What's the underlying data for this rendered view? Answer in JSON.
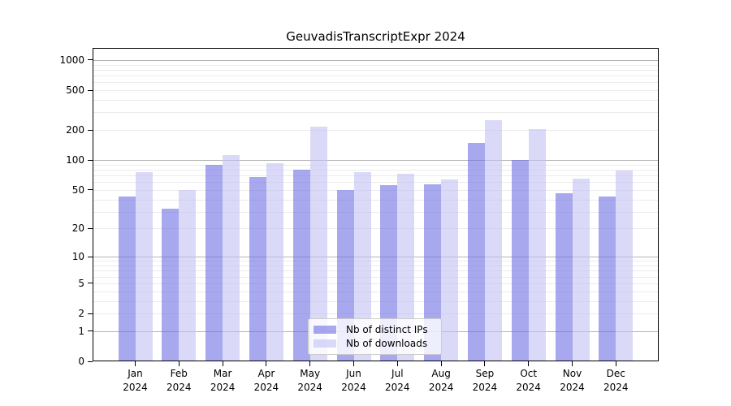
{
  "title": "GeuvadisTranscriptExpr 2024",
  "chart_data": {
    "type": "bar",
    "categories": [
      "Jan 2024",
      "Feb 2024",
      "Mar 2024",
      "Apr 2024",
      "May 2024",
      "Jun 2024",
      "Jul 2024",
      "Aug 2024",
      "Sep 2024",
      "Oct 2024",
      "Nov 2024",
      "Dec 2024"
    ],
    "series": [
      {
        "name": "Nb of distinct IPs",
        "color": "#a8a8ee",
        "fill": "rgba(110,110,228,0.6)",
        "values": [
          43,
          32,
          90,
          67,
          80,
          50,
          56,
          57,
          149,
          101,
          46,
          43
        ]
      },
      {
        "name": "Nb of downloads",
        "color": "#dadaf8",
        "fill": "rgba(193,193,243,0.6)",
        "values": [
          76,
          50,
          112,
          93,
          215,
          76,
          73,
          64,
          252,
          204,
          65,
          78
        ]
      }
    ],
    "xlabel": "",
    "ylabel": "",
    "yscale": "log1p",
    "yticks": [
      0,
      1,
      2,
      5,
      10,
      20,
      50,
      100,
      200,
      500,
      1000
    ],
    "ylim": [
      0,
      1310
    ],
    "grid": true,
    "major_grid_color": "#b3b3b3",
    "minor_grid_color": "#ebebeb",
    "legend_position": "lower center"
  }
}
